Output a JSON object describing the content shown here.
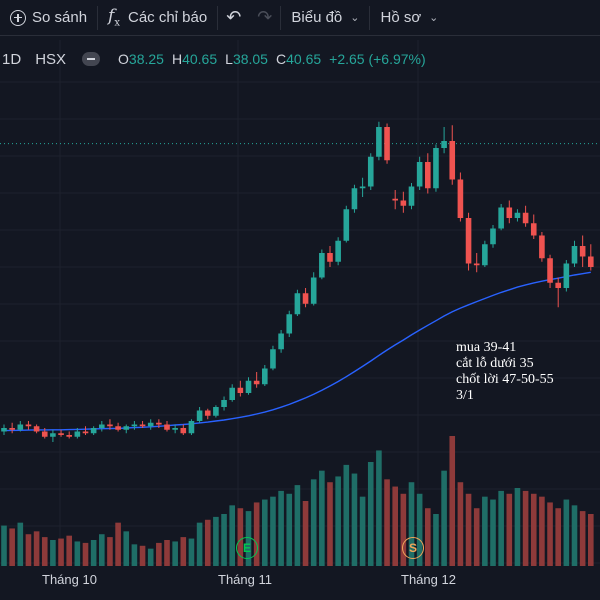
{
  "toolbar": {
    "compare_label": "So sánh",
    "indicators_label": "Các chỉ báo",
    "chart_type_label": "Biểu đồ",
    "profile_label": "Hồ sơ",
    "icons": [
      "plus-circle-icon",
      "fx-icon",
      "undo-icon",
      "redo-icon",
      "chevron-down-icon"
    ]
  },
  "legend": {
    "interval": "1D",
    "exchange": "HSX",
    "open_label": "O",
    "open": "38.25",
    "high_label": "H",
    "high": "40.65",
    "low_label": "L",
    "low": "38.05",
    "close_label": "C",
    "close": "40.65",
    "change": "+2.65 (+6.97%)"
  },
  "annotation": {
    "lines": [
      "mua 39-41",
      "cắt lỗ dưới 35",
      "chốt lời 47-50-55",
      "3/1"
    ]
  },
  "x_axis": {
    "labels": [
      "Tháng 10",
      "Tháng 11",
      "Tháng 12"
    ]
  },
  "markers": [
    {
      "letter": "E",
      "color": "#00c853"
    },
    {
      "letter": "S",
      "color": "#f2a65a"
    }
  ],
  "colors": {
    "background": "#131722",
    "up": "#26a69a",
    "down": "#ef5350",
    "ma_line": "#2962ff",
    "grid": "#1e222d"
  },
  "chart_data": {
    "type": "candlestick",
    "ohlc": [
      [
        24.2,
        24.6,
        24.0,
        24.4
      ],
      [
        24.4,
        24.7,
        24.1,
        24.3
      ],
      [
        24.3,
        24.8,
        24.2,
        24.6
      ],
      [
        24.6,
        24.8,
        24.3,
        24.5
      ],
      [
        24.5,
        24.6,
        24.1,
        24.2
      ],
      [
        24.2,
        24.4,
        23.8,
        23.9
      ],
      [
        23.9,
        24.3,
        23.6,
        24.1
      ],
      [
        24.1,
        24.3,
        23.9,
        24.0
      ],
      [
        24.0,
        24.2,
        23.8,
        23.9
      ],
      [
        23.9,
        24.4,
        23.8,
        24.2
      ],
      [
        24.2,
        24.5,
        24.0,
        24.1
      ],
      [
        24.1,
        24.5,
        24.0,
        24.4
      ],
      [
        24.4,
        24.8,
        24.2,
        24.6
      ],
      [
        24.6,
        24.9,
        24.3,
        24.5
      ],
      [
        24.5,
        24.7,
        24.2,
        24.3
      ],
      [
        24.3,
        24.6,
        24.1,
        24.5
      ],
      [
        24.5,
        24.8,
        24.3,
        24.6
      ],
      [
        24.6,
        24.8,
        24.4,
        24.5
      ],
      [
        24.5,
        24.9,
        24.3,
        24.7
      ],
      [
        24.7,
        24.9,
        24.4,
        24.6
      ],
      [
        24.6,
        24.8,
        24.2,
        24.3
      ],
      [
        24.3,
        24.6,
        24.1,
        24.4
      ],
      [
        24.4,
        24.6,
        24.0,
        24.1
      ],
      [
        24.1,
        24.9,
        24.0,
        24.8
      ],
      [
        24.8,
        25.6,
        24.7,
        25.4
      ],
      [
        25.4,
        25.5,
        24.9,
        25.1
      ],
      [
        25.1,
        25.7,
        25.0,
        25.6
      ],
      [
        25.6,
        26.2,
        25.4,
        26.0
      ],
      [
        26.0,
        26.9,
        25.9,
        26.7
      ],
      [
        26.7,
        27.1,
        26.2,
        26.4
      ],
      [
        26.4,
        27.3,
        26.3,
        27.1
      ],
      [
        27.1,
        27.6,
        26.7,
        26.9
      ],
      [
        26.9,
        28.0,
        26.8,
        27.8
      ],
      [
        27.8,
        29.1,
        27.7,
        28.9
      ],
      [
        28.9,
        30.0,
        28.7,
        29.8
      ],
      [
        29.8,
        31.1,
        29.6,
        30.9
      ],
      [
        30.9,
        32.3,
        30.8,
        32.1
      ],
      [
        32.1,
        32.4,
        31.3,
        31.5
      ],
      [
        31.5,
        33.3,
        31.4,
        33.0
      ],
      [
        33.0,
        34.6,
        32.9,
        34.4
      ],
      [
        34.4,
        34.8,
        33.6,
        33.9
      ],
      [
        33.9,
        35.3,
        33.7,
        35.1
      ],
      [
        35.1,
        37.1,
        35.0,
        36.9
      ],
      [
        36.9,
        38.3,
        36.7,
        38.1
      ],
      [
        38.1,
        38.7,
        37.6,
        38.2
      ],
      [
        38.2,
        40.1,
        38.0,
        39.9
      ],
      [
        39.9,
        41.9,
        39.7,
        41.6
      ],
      [
        41.6,
        41.8,
        39.5,
        39.7
      ],
      [
        37.5,
        38.0,
        36.9,
        37.4
      ],
      [
        37.4,
        37.9,
        36.7,
        37.1
      ],
      [
        37.1,
        38.4,
        36.9,
        38.2
      ],
      [
        38.2,
        39.9,
        38.0,
        39.6
      ],
      [
        39.6,
        40.1,
        37.8,
        38.1
      ],
      [
        38.1,
        40.6,
        37.9,
        40.4
      ],
      [
        40.4,
        41.6,
        40.1,
        40.8
      ],
      [
        40.8,
        41.7,
        38.3,
        38.6
      ],
      [
        38.6,
        39.0,
        36.2,
        36.4
      ],
      [
        36.4,
        36.7,
        33.4,
        33.8
      ],
      [
        33.8,
        34.4,
        33.3,
        33.7
      ],
      [
        33.7,
        35.1,
        33.6,
        34.9
      ],
      [
        34.9,
        36.0,
        34.7,
        35.8
      ],
      [
        35.8,
        37.2,
        35.7,
        37.0
      ],
      [
        37.0,
        37.4,
        36.1,
        36.4
      ],
      [
        36.4,
        36.9,
        36.2,
        36.7
      ],
      [
        36.7,
        37.1,
        35.9,
        36.1
      ],
      [
        36.1,
        36.6,
        35.2,
        35.4
      ],
      [
        35.4,
        35.6,
        33.9,
        34.1
      ],
      [
        34.1,
        34.3,
        32.4,
        32.7
      ],
      [
        32.7,
        33.0,
        31.3,
        32.4
      ],
      [
        32.4,
        34.0,
        32.2,
        33.8
      ],
      [
        33.8,
        35.1,
        33.6,
        34.8
      ],
      [
        34.8,
        35.4,
        33.6,
        34.2
      ],
      [
        34.2,
        34.9,
        33.4,
        33.6
      ]
    ],
    "ma": [
      24.25,
      24.26,
      24.27,
      24.28,
      24.29,
      24.29,
      24.3,
      24.3,
      24.31,
      24.32,
      24.33,
      24.35,
      24.36,
      24.37,
      24.38,
      24.4,
      24.42,
      24.44,
      24.47,
      24.5,
      24.53,
      24.57,
      24.6,
      24.64,
      24.69,
      24.74,
      24.8,
      24.86,
      24.93,
      25.01,
      25.1,
      25.2,
      25.31,
      25.44,
      25.59,
      25.75,
      25.93,
      26.12,
      26.33,
      26.56,
      26.8,
      27.06,
      27.33,
      27.62,
      27.92,
      28.23,
      28.55,
      28.86,
      29.15,
      29.43,
      29.72,
      30.0,
      30.27,
      30.53,
      30.8,
      31.04,
      31.25,
      31.44,
      31.62,
      31.8,
      31.98,
      32.15,
      32.3,
      32.45,
      32.58,
      32.69,
      32.79,
      32.88,
      32.96,
      33.05,
      33.14,
      33.22,
      33.3
    ],
    "volume": [
      28,
      26,
      30,
      22,
      24,
      20,
      18,
      19,
      21,
      17,
      16,
      18,
      22,
      20,
      30,
      24,
      15,
      14,
      12,
      16,
      18,
      17,
      20,
      19,
      30,
      32,
      34,
      36,
      42,
      40,
      38,
      44,
      46,
      48,
      52,
      50,
      56,
      45,
      60,
      66,
      58,
      62,
      70,
      64,
      48,
      72,
      80,
      60,
      55,
      50,
      58,
      50,
      40,
      36,
      66,
      90,
      58,
      50,
      40,
      48,
      46,
      52,
      50,
      54,
      52,
      50,
      48,
      44,
      40,
      46,
      42,
      38,
      36
    ],
    "x_tick_labels": [
      "Tháng 10",
      "Tháng 11",
      "Tháng 12"
    ],
    "price_range": [
      22,
      42
    ]
  }
}
